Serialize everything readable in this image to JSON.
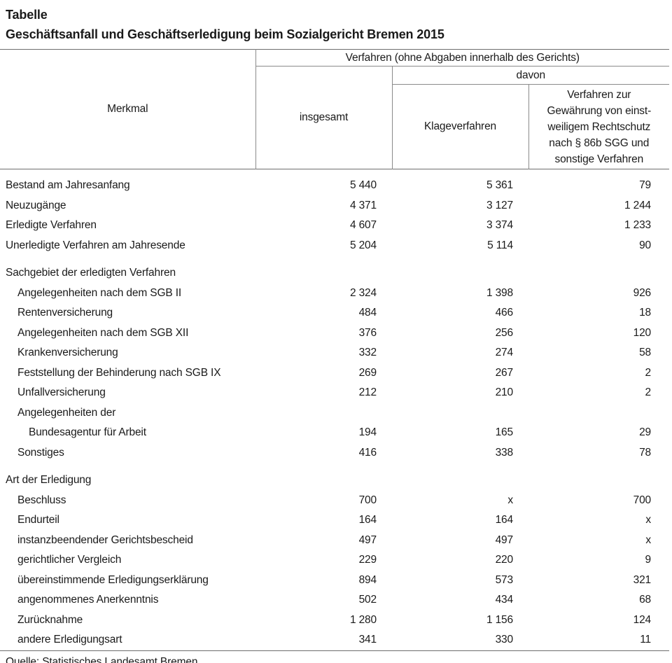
{
  "title": "Tabelle",
  "subtitle": "Geschäftsanfall und Geschäftserledigung beim Sozialgericht Bremen 2015",
  "colors": {
    "text": "#1a1a1a",
    "rule_lines": "#6e6e6e"
  },
  "table": {
    "header": {
      "merkmal": "Merkmal",
      "group": "Verfahren (ohne Abgaben innerhalb des Gerichts)",
      "insgesamt": "insgesamt",
      "davon": "davon",
      "klageverfahren": "Klageverfahren",
      "rechtschutz": "Verfahren zur\nGewährung von einst-\nweiligem Rechtschutz\nnach § 86b SGG und\nsonstige Verfahren"
    },
    "rows": [
      {
        "label": "Bestand am Jahresanfang",
        "indent": 0,
        "gap_before": false,
        "values": [
          "5 440",
          "5 361",
          "79"
        ]
      },
      {
        "label": "Neuzugänge",
        "indent": 0,
        "gap_before": false,
        "values": [
          "4 371",
          "3 127",
          "1 244"
        ]
      },
      {
        "label": "Erledigte Verfahren",
        "indent": 0,
        "gap_before": false,
        "values": [
          "4 607",
          "3 374",
          "1 233"
        ]
      },
      {
        "label": "Unerledigte Verfahren am Jahresende",
        "indent": 0,
        "gap_before": false,
        "values": [
          "5 204",
          "5 114",
          "90"
        ]
      },
      {
        "label": "Sachgebiet der erledigten Verfahren",
        "indent": 0,
        "gap_before": true,
        "values": [
          "",
          "",
          ""
        ]
      },
      {
        "label": "Angelegenheiten nach dem SGB II",
        "indent": 1,
        "gap_before": false,
        "values": [
          "2 324",
          "1 398",
          "926"
        ]
      },
      {
        "label": "Rentenversicherung",
        "indent": 1,
        "gap_before": false,
        "values": [
          "484",
          "466",
          "18"
        ]
      },
      {
        "label": "Angelegenheiten nach dem SGB XII",
        "indent": 1,
        "gap_before": false,
        "values": [
          "376",
          "256",
          "120"
        ]
      },
      {
        "label": "Krankenversicherung",
        "indent": 1,
        "gap_before": false,
        "values": [
          "332",
          "274",
          "58"
        ]
      },
      {
        "label": "Feststellung der Behinderung nach SGB IX",
        "indent": 1,
        "gap_before": false,
        "values": [
          "269",
          "267",
          "2"
        ]
      },
      {
        "label": "Unfallversicherung",
        "indent": 1,
        "gap_before": false,
        "values": [
          "212",
          "210",
          "2"
        ]
      },
      {
        "label": "Angelegenheiten der",
        "indent": 1,
        "gap_before": false,
        "values": [
          "",
          "",
          ""
        ]
      },
      {
        "label": "Bundesagentur für Arbeit",
        "indent": 2,
        "gap_before": false,
        "values": [
          "194",
          "165",
          "29"
        ]
      },
      {
        "label": "Sonstiges",
        "indent": 1,
        "gap_before": false,
        "values": [
          "416",
          "338",
          "78"
        ]
      },
      {
        "label": "Art der Erledigung",
        "indent": 0,
        "gap_before": true,
        "values": [
          "",
          "",
          ""
        ]
      },
      {
        "label": "Beschluss",
        "indent": 1,
        "gap_before": false,
        "values": [
          "700",
          "x",
          "700"
        ]
      },
      {
        "label": "Endurteil",
        "indent": 1,
        "gap_before": false,
        "values": [
          "164",
          "164",
          "x"
        ]
      },
      {
        "label": "instanzbeendender Gerichtsbescheid",
        "indent": 1,
        "gap_before": false,
        "values": [
          "497",
          "497",
          "x"
        ]
      },
      {
        "label": "gerichtlicher Vergleich",
        "indent": 1,
        "gap_before": false,
        "values": [
          "229",
          "220",
          "9"
        ]
      },
      {
        "label": "übereinstimmende Erledigungserklärung",
        "indent": 1,
        "gap_before": false,
        "values": [
          "894",
          "573",
          "321"
        ]
      },
      {
        "label": "angenommenes Anerkenntnis",
        "indent": 1,
        "gap_before": false,
        "values": [
          "502",
          "434",
          "68"
        ]
      },
      {
        "label": "Zurücknahme",
        "indent": 1,
        "gap_before": false,
        "values": [
          "1 280",
          "1 156",
          "124"
        ]
      },
      {
        "label": "andere Erledigungsart",
        "indent": 1,
        "gap_before": false,
        "values": [
          "341",
          "330",
          "11"
        ]
      }
    ]
  },
  "footer": {
    "source": "Quelle: Statistisches Landesamt Bremen"
  }
}
